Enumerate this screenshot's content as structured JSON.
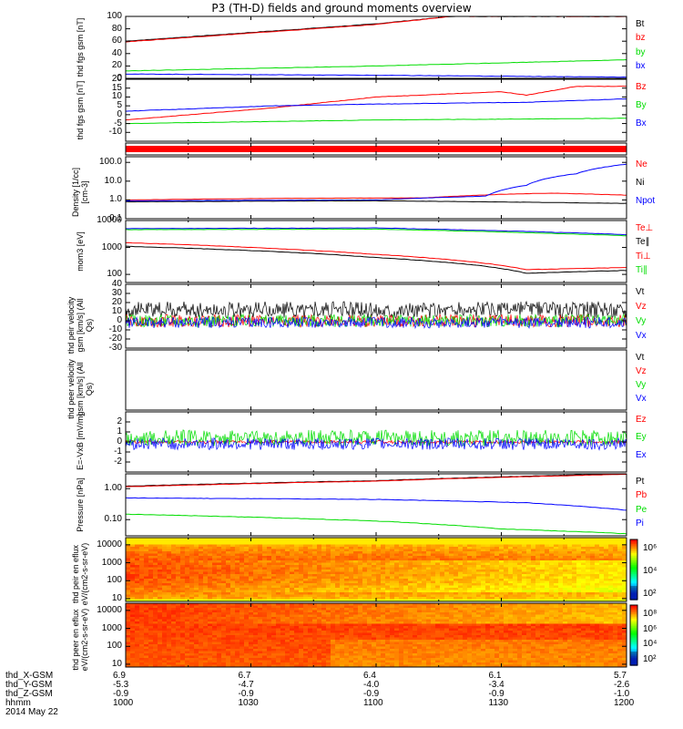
{
  "title": "P3 (TH-D) fields and ground moments overview",
  "footer": {
    "rows": [
      {
        "label": "thd_X-GSM",
        "values": [
          "6.9",
          "6.7",
          "6.4",
          "6.1",
          "5.7"
        ]
      },
      {
        "label": "thd_Y-GSM",
        "values": [
          "-5.3",
          "-4.7",
          "-4.0",
          "-3.4",
          "-2.6"
        ]
      },
      {
        "label": "thd_Z-GSM",
        "values": [
          "-0.9",
          "-0.9",
          "-0.9",
          "-0.9",
          "-1.0"
        ]
      },
      {
        "label": "hhmm",
        "values": [
          "1000",
          "1030",
          "1100",
          "1130",
          "1200"
        ]
      }
    ],
    "date": "2014 May 22"
  },
  "colors": {
    "black": "#000000",
    "red": "#ff0000",
    "green": "#00dd00",
    "blue": "#0000ff"
  },
  "chart_data": [
    {
      "type": "line",
      "ylabel": "thd fgs gsm [nT]",
      "ylim": [
        0,
        100
      ],
      "yscale": "linear",
      "yticks": [
        "100",
        "80",
        "60",
        "40",
        "20",
        "0"
      ],
      "legend": [
        "Bt",
        "bz",
        "by",
        "bx"
      ],
      "series": [
        {
          "name": "Bt",
          "x": [
            0,
            0.5,
            0.65
          ],
          "values": [
            60,
            88,
            100
          ]
        },
        {
          "name": "bz",
          "x": [
            0,
            0.5,
            0.65
          ],
          "values": [
            59,
            87,
            100
          ]
        },
        {
          "name": "by",
          "x": [
            0,
            0.5,
            1
          ],
          "values": [
            12,
            20,
            30
          ]
        },
        {
          "name": "bx",
          "x": [
            0,
            0.5,
            1
          ],
          "values": [
            7,
            5,
            2
          ]
        }
      ]
    },
    {
      "type": "line",
      "ylabel": "thd fgs gsm [nT]",
      "ylim": [
        -15,
        20
      ],
      "yscale": "linear",
      "yticks": [
        "20",
        "15",
        "10",
        "5",
        "0",
        "-5",
        "-10"
      ],
      "legend": [
        "Bz",
        "By",
        "Bx"
      ],
      "series": [
        {
          "name": "Bz",
          "x": [
            0,
            0.3,
            0.5,
            0.75,
            0.8,
            0.9,
            1
          ],
          "values": [
            -3,
            4,
            10,
            13,
            11,
            16,
            16
          ]
        },
        {
          "name": "By",
          "x": [
            0,
            0.3,
            0.5,
            0.8,
            1
          ],
          "values": [
            2,
            5,
            6,
            7,
            9
          ]
        },
        {
          "name": "Bx",
          "x": [
            0,
            0.5,
            1
          ],
          "values": [
            -5,
            -3,
            -2
          ]
        }
      ]
    },
    {
      "type": "line",
      "ylabel": "",
      "ylim": [
        0,
        1
      ],
      "yscale": "linear",
      "yticks": [],
      "legend": [],
      "series": [
        {
          "name": "",
          "x": [
            0,
            1
          ],
          "values": [
            0.5,
            0.5
          ]
        }
      ]
    },
    {
      "type": "line",
      "ylabel": "Density [1/cc] [cm-3]",
      "ylim": [
        0.1,
        200
      ],
      "yscale": "log",
      "yticks": [
        "100.0",
        "10.0",
        "1.0",
        "0.1"
      ],
      "legend": [
        "Ne",
        "Ni",
        "Npot"
      ],
      "series": [
        {
          "name": "Ne",
          "x": [
            0,
            0.3,
            0.6,
            0.75,
            0.85,
            1
          ],
          "values": [
            1.0,
            1.2,
            1.3,
            2.0,
            2.3,
            1.8
          ]
        },
        {
          "name": "Ni",
          "x": [
            0,
            0.5,
            1
          ],
          "values": [
            0.8,
            0.9,
            0.65
          ]
        },
        {
          "name": "Npot",
          "x": [
            0,
            0.5,
            0.72,
            0.8,
            0.9,
            1
          ],
          "values": [
            0.9,
            1.0,
            1.6,
            6,
            25,
            80
          ]
        }
      ]
    },
    {
      "type": "line",
      "ylabel": "mom3 [eV]",
      "ylim": [
        50,
        10000
      ],
      "yscale": "log",
      "yticks": [
        "10000",
        "1000",
        "100"
      ],
      "legend": [
        "Te⊥",
        "Te∥",
        "Ti⊥",
        "Ti∥"
      ],
      "series": [
        {
          "name": "Te⊥",
          "x": [
            0,
            0.5,
            1
          ],
          "values": [
            5000,
            5300,
            3000
          ]
        },
        {
          "name": "Te∥",
          "x": [
            0,
            0.5,
            1
          ],
          "values": [
            4600,
            4800,
            2700
          ]
        },
        {
          "name": "Ti⊥",
          "x": [
            0,
            0.3,
            0.5,
            0.7,
            0.8,
            1
          ],
          "values": [
            1500,
            900,
            550,
            280,
            150,
            180
          ]
        },
        {
          "name": "Ti∥",
          "x": [
            0,
            0.3,
            0.5,
            0.7,
            0.8,
            1
          ],
          "values": [
            1100,
            700,
            420,
            220,
            110,
            140
          ]
        }
      ]
    },
    {
      "type": "line",
      "ylabel": "thd peir velocity gsm [km/s] (All Qs)",
      "ylim": [
        -30,
        40
      ],
      "yscale": "linear",
      "yticks": [
        "40",
        "30",
        "20",
        "10",
        "0",
        "-10",
        "-20",
        "-30"
      ],
      "legend": [
        "Vt",
        "Vz",
        "Vy",
        "Vx"
      ],
      "series": [
        {
          "name": "Vt",
          "x": [
            0,
            1
          ],
          "values": [
            12,
            12
          ]
        },
        {
          "name": "Vz",
          "x": [
            0,
            1
          ],
          "values": [
            0,
            0
          ]
        },
        {
          "name": "Vy",
          "x": [
            0,
            1
          ],
          "values": [
            0,
            0
          ]
        },
        {
          "name": "Vx",
          "x": [
            0,
            1
          ],
          "values": [
            -2,
            -2
          ]
        }
      ]
    },
    {
      "type": "line",
      "ylabel": "thd peer velocity gsm [km/s] (All Qs)",
      "ylim": [
        0,
        1
      ],
      "yscale": "linear",
      "yticks": [],
      "legend": [
        "Vt",
        "Vz",
        "Vy",
        "Vx"
      ],
      "series": []
    },
    {
      "type": "line",
      "ylabel": "E=-VxB [mV/m]",
      "ylim": [
        -3,
        3
      ],
      "yscale": "linear",
      "yticks": [
        "2",
        "1",
        "0",
        "-1",
        "-2"
      ],
      "legend": [
        "Ez",
        "Ey",
        "Ex"
      ],
      "series": [
        {
          "name": "Ez",
          "x": [
            0,
            1
          ],
          "values": [
            0,
            0
          ]
        },
        {
          "name": "Ey",
          "x": [
            0,
            1
          ],
          "values": [
            0.4,
            0.4
          ]
        },
        {
          "name": "Ex",
          "x": [
            0,
            1
          ],
          "values": [
            -0.2,
            -0.2
          ]
        }
      ]
    },
    {
      "type": "line",
      "ylabel": "Pressure [nPa]",
      "ylim": [
        0.03,
        3
      ],
      "yscale": "log",
      "yticks": [
        "1.00",
        "0.10"
      ],
      "legend": [
        "Pt",
        "Pb",
        "Pe",
        "Pi"
      ],
      "series": [
        {
          "name": "Pt",
          "x": [
            0,
            0.5,
            1
          ],
          "values": [
            1.2,
            1.8,
            3.0
          ]
        },
        {
          "name": "Pb",
          "x": [
            0,
            0.5,
            1
          ],
          "values": [
            1.15,
            1.75,
            2.9
          ]
        },
        {
          "name": "Pe",
          "x": [
            0,
            0.5,
            0.75,
            1
          ],
          "values": [
            0.15,
            0.09,
            0.05,
            0.035
          ]
        },
        {
          "name": "Pi",
          "x": [
            0,
            0.5,
            0.8,
            1
          ],
          "values": [
            0.5,
            0.45,
            0.35,
            0.2
          ]
        }
      ]
    },
    {
      "type": "heatmap",
      "ylabel": "thd peir en eflux eV/(cm2-s-sr-eV)",
      "ylim": [
        7,
        25000
      ],
      "yscale": "log",
      "yticks": [
        "10000",
        "1000",
        "100",
        "10"
      ],
      "colorbar": {
        "ticks": [
          "10⁶",
          "10⁴",
          "10²"
        ]
      }
    },
    {
      "type": "heatmap",
      "ylabel": "thd peer en eflux eV/(cm2-s-sr-eV)",
      "ylim": [
        7,
        25000
      ],
      "yscale": "log",
      "yticks": [
        "10000",
        "1000",
        "100",
        "10"
      ],
      "colorbar": {
        "ticks": [
          "10⁸",
          "10⁶",
          "10⁴",
          "10²"
        ]
      }
    }
  ]
}
